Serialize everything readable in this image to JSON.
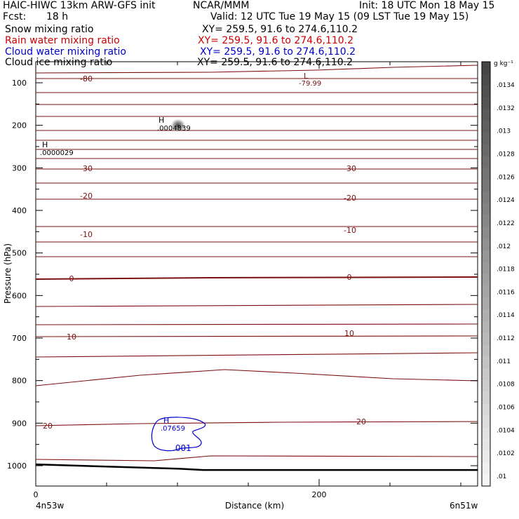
{
  "header": {
    "left_title": "HAIC-HIWC 13km ARW-GFS init",
    "org": "NCAR/MMM",
    "init": "Init: 18 UTC Mon 18 May 15",
    "fcst_label": "Fcst:",
    "fcst_value": "18 h",
    "valid": "Valid: 12 UTC Tue 19 May 15 (09 LST Tue 19 May 15)",
    "fields": [
      {
        "name": "Snow mixing ratio",
        "xy": "XY= 259.5, 91.6 to 274.6,110.2",
        "color": "#000000"
      },
      {
        "name": "Rain water mixing ratio",
        "xy": "XY= 259.5, 91.6 to 274.6,110.2",
        "color": "#cc0000"
      },
      {
        "name": "Cloud water mixing ratio",
        "xy": "XY= 259.5, 91.6 to 274.6,110.2",
        "color": "#0000cc"
      },
      {
        "name": "Cloud ice mixing ratio",
        "xy": "XY= 259.5, 91.6 to 274.6,110.2",
        "color": "#000000"
      }
    ]
  },
  "chart_data": {
    "type": "contour",
    "xlabel": "Distance (km)",
    "ylabel": "Pressure (hPa)",
    "xlim": [
      0,
      312
    ],
    "ylim": [
      1050,
      50
    ],
    "x_ticks": [
      0,
      200
    ],
    "x_end_labels": [
      "4n53w",
      "6n51w"
    ],
    "y_ticks": [
      100,
      200,
      300,
      400,
      500,
      600,
      700,
      800,
      900,
      1000
    ],
    "colorbar": {
      "unit": "g kg⁻¹",
      "labels": [
        ".0134",
        ".0132",
        ".013",
        ".0128",
        ".0126",
        ".0124",
        ".0122",
        ".012",
        ".0118",
        ".0116",
        ".0114",
        ".0112",
        ".011",
        ".0108",
        ".0106",
        ".0104",
        ".0102",
        ".01"
      ]
    },
    "temperature_labels": [
      "-80",
      "-30",
      "-20",
      "-10",
      "0",
      "10",
      "20"
    ],
    "extrema": [
      {
        "kind": "L",
        "value": "-79.99",
        "x": 190,
        "p": 90
      },
      {
        "kind": "H",
        "value": ".0004839",
        "x": 85,
        "p": 198
      },
      {
        "kind": "H",
        "value": ".0000029",
        "x": 5,
        "p": 262
      },
      {
        "kind": "H",
        "value": ".07659",
        "x": 88,
        "p": 912
      }
    ],
    "cloud_water_label": ".001",
    "terrain_surface_hPa": [
      [
        0,
        997
      ],
      [
        50,
        1002
      ],
      [
        100,
        1007
      ],
      [
        118,
        1010
      ],
      [
        200,
        1010
      ],
      [
        312,
        1010
      ]
    ]
  },
  "colors": {
    "isotherm": "#7a1010",
    "cloud_water": "#0000cc",
    "terrain": "#000000"
  }
}
